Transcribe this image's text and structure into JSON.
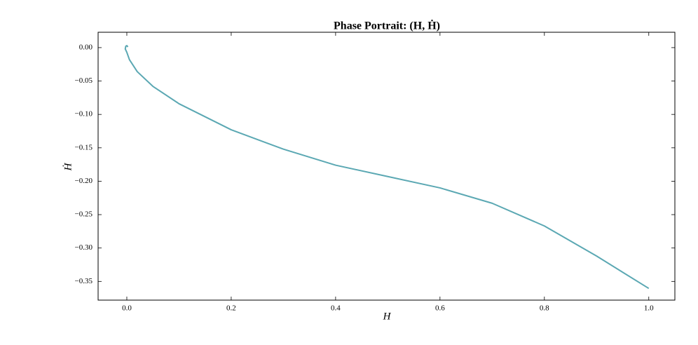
{
  "chart_data": {
    "type": "line",
    "title": "Phase Portrait: (H, Ḣ)",
    "xlabel": "H",
    "ylabel": "Ḣ",
    "x": [
      1.0,
      0.9,
      0.8,
      0.7,
      0.6,
      0.5,
      0.4,
      0.3,
      0.2,
      0.1,
      0.05,
      0.02,
      0.005,
      0.0,
      -0.003,
      -0.002,
      0.0,
      0.002
    ],
    "values": [
      -0.3605,
      -0.312,
      -0.267,
      -0.233,
      -0.21,
      -0.193,
      -0.176,
      -0.152,
      -0.123,
      -0.084,
      -0.058,
      -0.036,
      -0.018,
      -0.007,
      -0.002,
      0.002,
      0.003,
      0.001
    ],
    "color": "#5ba8b3",
    "xlim": [
      -0.055,
      1.05
    ],
    "ylim": [
      -0.378,
      0.023
    ],
    "xticks": [
      {
        "value": 0,
        "label": "0.0"
      },
      {
        "value": 0.2,
        "label": "0.2"
      },
      {
        "value": 0.4,
        "label": "0.4"
      },
      {
        "value": 0.6,
        "label": "0.6"
      },
      {
        "value": 0.8,
        "label": "0.8"
      },
      {
        "value": 1,
        "label": "1.0"
      }
    ],
    "yticks": [
      {
        "value": 0,
        "label": "0.00"
      },
      {
        "value": -0.05,
        "label": "−0.05"
      },
      {
        "value": -0.1,
        "label": "−0.10"
      },
      {
        "value": -0.15,
        "label": "−0.15"
      },
      {
        "value": -0.2,
        "label": "−0.20"
      },
      {
        "value": -0.25,
        "label": "−0.25"
      },
      {
        "value": -0.3,
        "label": "−0.30"
      },
      {
        "value": -0.35,
        "label": "−0.35"
      }
    ]
  }
}
